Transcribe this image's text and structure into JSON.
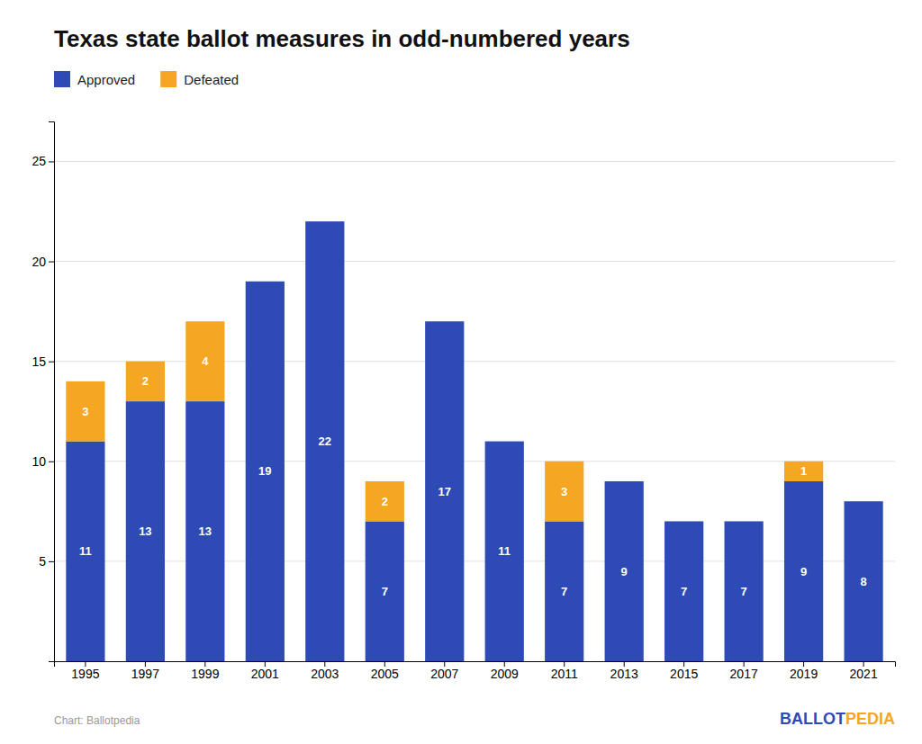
{
  "chart_data": {
    "type": "bar",
    "title": "Texas state ballot measures in odd-numbered years",
    "categories": [
      "1995",
      "1997",
      "1999",
      "2001",
      "2003",
      "2005",
      "2007",
      "2009",
      "2011",
      "2013",
      "2015",
      "2017",
      "2019",
      "2021"
    ],
    "series": [
      {
        "name": "Approved",
        "color": "#2E4BB5",
        "values": [
          11,
          13,
          13,
          19,
          22,
          7,
          17,
          11,
          7,
          9,
          7,
          7,
          9,
          8
        ]
      },
      {
        "name": "Defeated",
        "color": "#F5A623",
        "values": [
          3,
          2,
          4,
          0,
          0,
          2,
          0,
          0,
          3,
          0,
          0,
          0,
          1,
          0
        ]
      }
    ],
    "stacked": true,
    "ylim": [
      0,
      27
    ],
    "yticks": [
      5,
      10,
      15,
      20,
      25
    ],
    "grid": true,
    "legend": "top",
    "data_labels": true,
    "annotations": [
      {
        "text": "Chart: Ballotpedia"
      },
      {
        "text": "BALLOT",
        "color": "#2E4BB5"
      },
      {
        "text": "PEDIA",
        "color": "#F5A623"
      }
    ]
  }
}
